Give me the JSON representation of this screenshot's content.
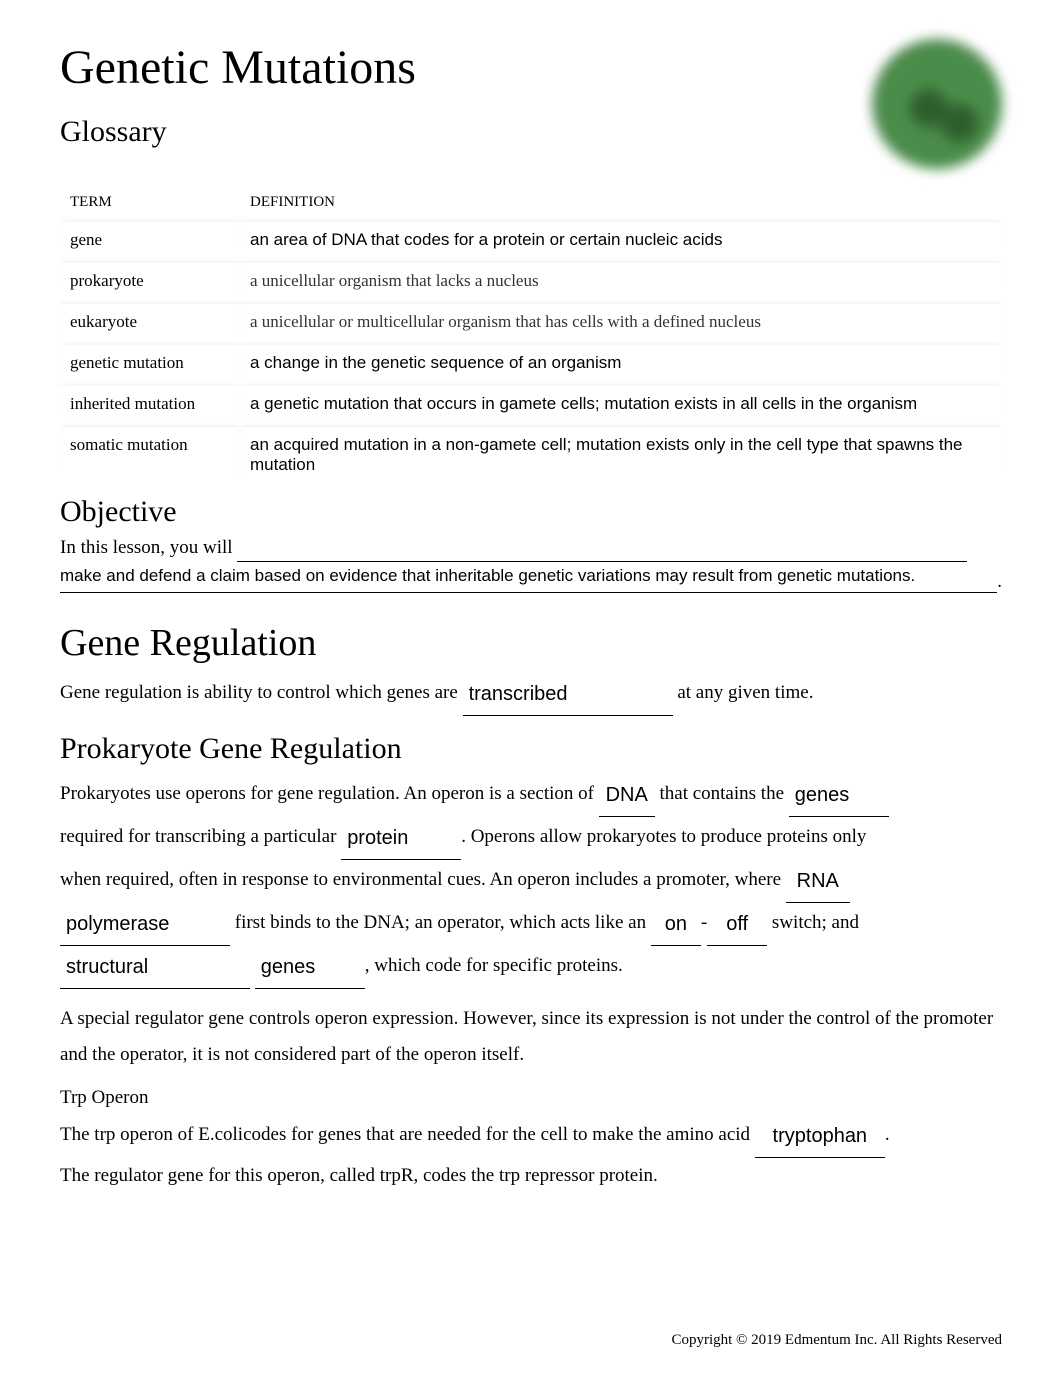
{
  "title": "Genetic Mutations",
  "sections": {
    "glossary_h": "Glossary",
    "objective_h": "Objective",
    "gene_reg_h": "Gene Regulation",
    "prok_h": "Prokaryote Gene Regulation",
    "trp_h": "Trp Operon"
  },
  "glossary": {
    "head_term": "TERM",
    "head_def": "DEFINITION",
    "rows": [
      {
        "term": "gene",
        "def": "an area of DNA that codes for a protein or certain nucleic acids",
        "style": "sans"
      },
      {
        "term": "prokaryote",
        "def": "a unicellular organism that lacks a nucleus",
        "style": "serif"
      },
      {
        "term": "eukaryote",
        "def": "a unicellular or multicellular organism that has cells with a defined nucleus",
        "style": "serif"
      },
      {
        "term": "genetic mutation",
        "def": "a change in the genetic sequence of an organism",
        "style": "sans"
      },
      {
        "term": "inherited mutation",
        "def": "a genetic mutation that occurs in gamete cells; mutation exists in all cells in the organism",
        "style": "sans"
      },
      {
        "term": "somatic mutation",
        "def": "an acquired mutation in a non-gamete cell; mutation exists only in the cell type that spawns the mutation",
        "style": "sans"
      }
    ]
  },
  "objective": {
    "lead": "In this lesson, you will ",
    "fill": "make and defend a claim based on evidence that inheritable genetic variations may result from genetic mutations."
  },
  "gene_reg": {
    "p1a": "Gene regulation is ability to control which genes are ",
    "blank1": "transcribed",
    "p1b": " at any given time."
  },
  "prok": {
    "t1": "Prokaryotes use operons for gene regulation. An operon is a section of ",
    "b_dna": "DNA",
    "t2": " that contains the ",
    "b_genes": "genes",
    "t3": "required for transcribing a particular ",
    "b_protein": "protein",
    "t4": ". Operons allow prokaryotes to produce proteins only",
    "t5": "when required, often in response to environmental cues. An operon includes a promoter, where ",
    "b_rna": "RNA",
    "b_poly": "polymerase",
    "t6": " first binds to the DNA; an operator, which acts like an ",
    "b_on": "on",
    "t_dash": "-",
    "b_off": "off",
    "t7": " switch; and",
    "b_struct": "structural",
    "b_genes2": "genes",
    "t8": ", which code for specific proteins.",
    "p2": "A special regulator gene controls operon expression. However, since its expression is not under the control of the promoter and the operator, it is not considered part of the operon itself."
  },
  "trp": {
    "t1": "The trp operon of  E.colicodes for genes that are needed for the cell to make the amino acid ",
    "b_tryp": "tryptophan",
    "t1end": ".",
    "t2": "The regulator gene for this operon, called  trpR, codes the  trp  repressor protein."
  },
  "footer": "Copyright © 2019 Edmentum Inc. All Rights Reserved",
  "colors": {
    "text": "#000000",
    "bg": "#ffffff",
    "cell_green": "#4a8c4a",
    "cell_dark": "#2e5e2e"
  }
}
